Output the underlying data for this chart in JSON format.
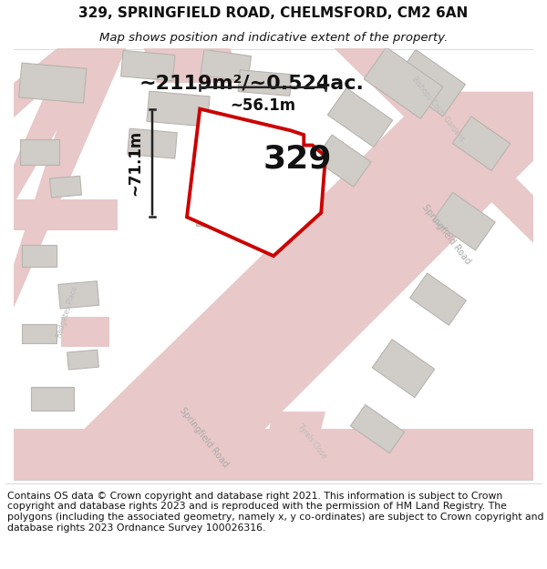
{
  "title_line1": "329, SPRINGFIELD ROAD, CHELMSFORD, CM2 6AN",
  "title_line2": "Map shows position and indicative extent of the property.",
  "footer_text": "Contains OS data © Crown copyright and database right 2021. This information is subject to Crown copyright and database rights 2023 and is reproduced with the permission of HM Land Registry. The polygons (including the associated geometry, namely x, y co-ordinates) are subject to Crown copyright and database rights 2023 Ordnance Survey 100026316.",
  "area_label": "~2119m²/~0.524ac.",
  "width_label": "~56.1m",
  "height_label": "~71.1m",
  "property_number": "329",
  "map_bg": "#eeebe6",
  "road_fill": "#e8c8c8",
  "road_line": "#d4a8a8",
  "building_fill": "#d0ccc8",
  "building_edge": "#b8b4b0",
  "plot_edge": "#cc0000",
  "plot_fill": "#ffffff",
  "title_fontsize": 11,
  "subtitle_fontsize": 9.5,
  "footer_fontsize": 7.8,
  "area_fontsize": 16,
  "measure_fontsize": 12,
  "number_fontsize": 26
}
